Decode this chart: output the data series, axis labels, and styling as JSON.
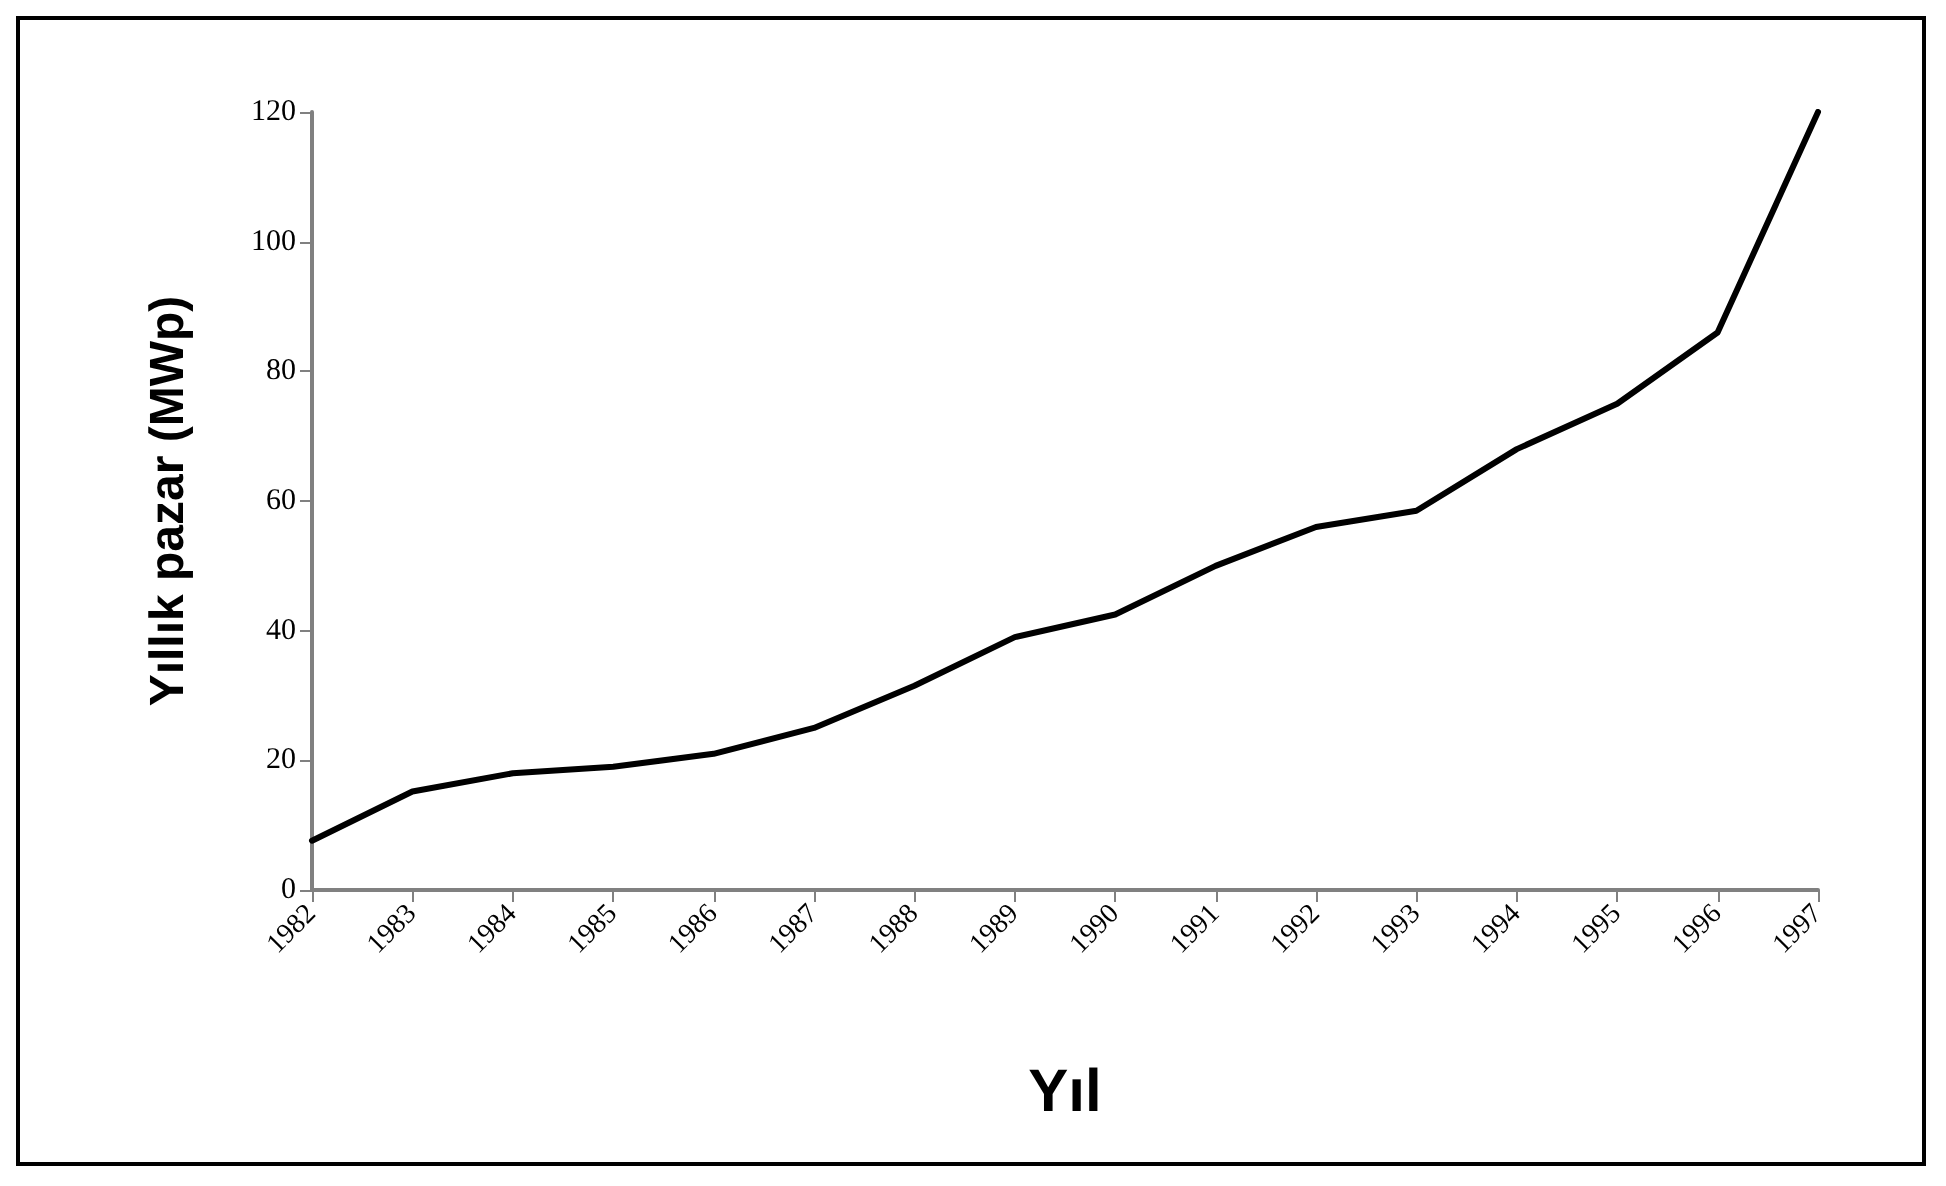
{
  "chart_data": {
    "type": "line",
    "xlabel": "Yıl",
    "ylabel": "Yıllık pazar (MWp)",
    "categories": [
      "1982",
      "1983",
      "1984",
      "1985",
      "1986",
      "1987",
      "1988",
      "1989",
      "1990",
      "1991",
      "1992",
      "1993",
      "1994",
      "1995",
      "1996",
      "1997"
    ],
    "series": [
      {
        "color": "#000000",
        "values": [
          7.6,
          15.2,
          18,
          19,
          21,
          25,
          31.5,
          39,
          42.5,
          50,
          56,
          58.5,
          68,
          75,
          86,
          120
        ]
      }
    ],
    "ylim": [
      0,
      120
    ],
    "yticks": [
      0,
      20,
      40,
      60,
      80,
      100,
      120
    ],
    "grid": false,
    "marker": "none",
    "line_style": "solid"
  }
}
